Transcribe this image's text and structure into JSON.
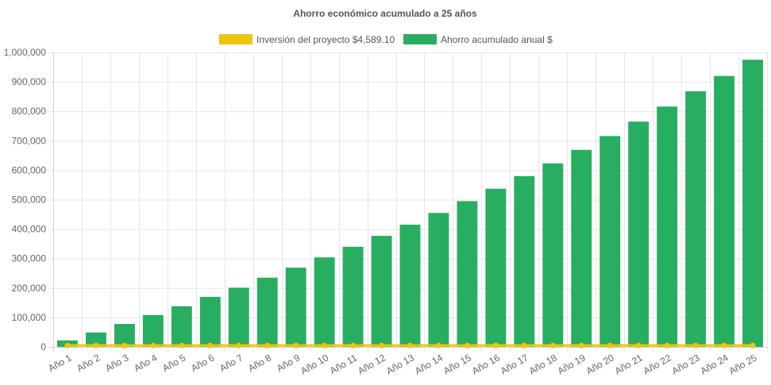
{
  "chart_data": {
    "type": "bar",
    "title": "Ahorro económico acumulado a 25 años",
    "categories": [
      "Año 1",
      "Año 2",
      "Año 3",
      "Año 4",
      "Año 5",
      "Año 6",
      "Año 7",
      "Año 8",
      "Año 9",
      "Año 10",
      "Año 11",
      "Año 12",
      "Año 13",
      "Año 14",
      "Año 15",
      "Año 16",
      "Año 17",
      "Año 18",
      "Año 19",
      "Año 20",
      "Año 21",
      "Año 22",
      "Año 23",
      "Año 24",
      "Año 25"
    ],
    "series": [
      {
        "name": "Inversión del proyecto $4,589.10",
        "kind": "line",
        "color": "#f1c40f",
        "values": [
          4589.1,
          4589.1,
          4589.1,
          4589.1,
          4589.1,
          4589.1,
          4589.1,
          4589.1,
          4589.1,
          4589.1,
          4589.1,
          4589.1,
          4589.1,
          4589.1,
          4589.1,
          4589.1,
          4589.1,
          4589.1,
          4589.1,
          4589.1,
          4589.1,
          4589.1,
          4589.1,
          4589.1,
          4589.1
        ]
      },
      {
        "name": "Ahorro acumulado anual $",
        "kind": "bar",
        "color": "#27ae60",
        "values": [
          22000,
          49000,
          78000,
          108000,
          138000,
          170000,
          201000,
          235000,
          269000,
          304000,
          340000,
          377000,
          415000,
          455000,
          495000,
          537000,
          580000,
          623000,
          669000,
          716000,
          765000,
          816000,
          868000,
          920000,
          975000
        ]
      }
    ],
    "ylim": [
      0,
      1000000
    ],
    "yticks": [
      0,
      100000,
      200000,
      300000,
      400000,
      500000,
      600000,
      700000,
      800000,
      900000,
      1000000
    ],
    "ytick_labels": [
      "0",
      "100,000",
      "200,000",
      "300,000",
      "400,000",
      "500,000",
      "600,000",
      "700,000",
      "800,000",
      "900,000",
      "1,000,000"
    ],
    "grid": true,
    "legend_position": "top"
  }
}
